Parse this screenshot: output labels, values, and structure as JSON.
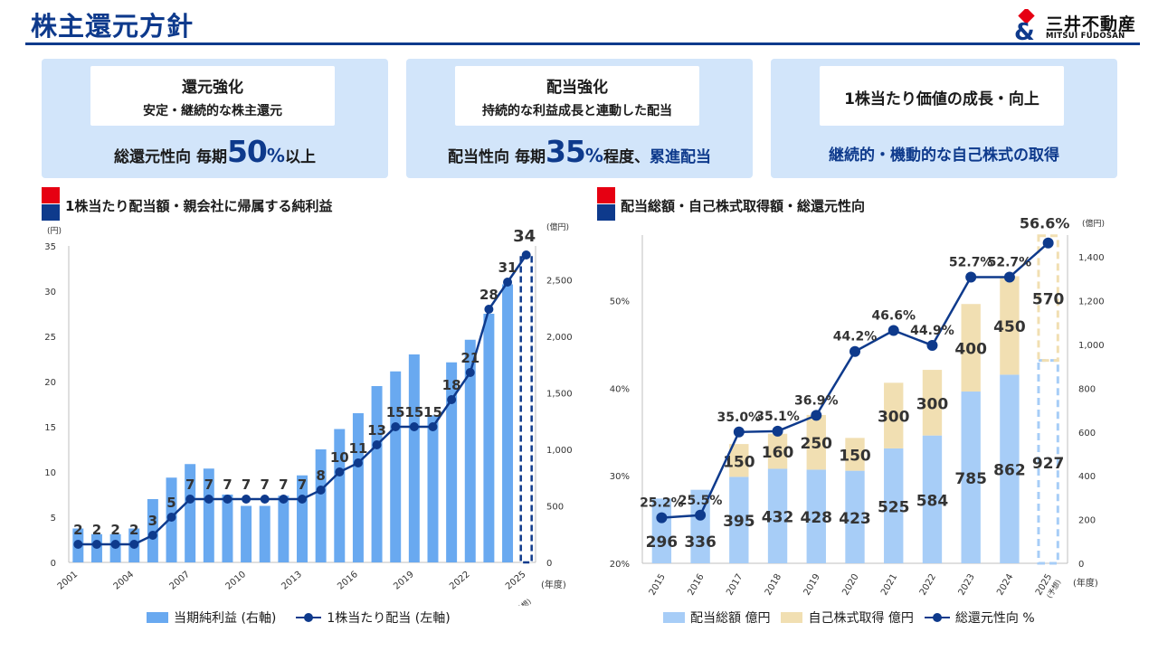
{
  "page": {
    "title": "株主還元方針"
  },
  "logo": {
    "jp": "三井不動産",
    "en": "MITSUI FUDOSAN"
  },
  "colors": {
    "navy": "#0e3a8c",
    "bar_blue": "#69a9f0",
    "light_blue": "#a7cdf7",
    "tan": "#f1dfb2",
    "card_bg": "#d2e5fa",
    "red": "#e60012"
  },
  "cards": [
    {
      "heading": "還元強化",
      "sub": "安定・継続的な株主還元",
      "b_pre": "総還元性向 毎期",
      "b_num": "50",
      "b_pct": "%",
      "b_post": "以上"
    },
    {
      "heading": "配当強化",
      "sub": "持続的な利益成長と連動した配当",
      "b_pre": "配当性向 毎期",
      "b_num": "35",
      "b_pct": "%",
      "b_post": "程度、",
      "b_em": "累進配当"
    },
    {
      "heading": "1株当たり価値の成長・向上",
      "bottom": "継続的・機動的な自己株式の取得"
    }
  ],
  "chart_data": [
    {
      "type": "bar",
      "title": "1株当たり配当額・親会社に帰属する純利益",
      "left_unit": "(円)",
      "right_unit": "(億円)",
      "x_unit": "(年度)",
      "categories": [
        "2001",
        "2002",
        "2003",
        "2004",
        "2005",
        "2006",
        "2007",
        "2008",
        "2009",
        "2010",
        "2011",
        "2012",
        "2013",
        "2014",
        "2015",
        "2016",
        "2017",
        "2018",
        "2019",
        "2020",
        "2021",
        "2022",
        "2023",
        "2024",
        "2025"
      ],
      "x_ticks": [
        "2001",
        "2004",
        "2007",
        "2010",
        "2013",
        "2016",
        "2019",
        "2022",
        "2025"
      ],
      "forecast_note": "(予想)",
      "y_left": {
        "min": 0,
        "max": 35,
        "ticks": [
          "0",
          "5",
          "10",
          "15",
          "20",
          "25",
          "30",
          "35"
        ]
      },
      "y_right": {
        "min": 0,
        "max": 2800,
        "ticks": [
          "0",
          "500",
          "1,000",
          "1,500",
          "2,000",
          "2,500"
        ]
      },
      "series": [
        {
          "name": "当期純利益 (右軸)",
          "axis": "right",
          "kind": "bar",
          "values": [
            300,
            250,
            250,
            300,
            560,
            750,
            870,
            830,
            600,
            500,
            500,
            590,
            770,
            1000,
            1180,
            1320,
            1560,
            1690,
            1840,
            1300,
            1770,
            1970,
            2200,
            2460,
            2700
          ],
          "forecast_last": true
        },
        {
          "name": "1株当たり配当 (左軸)",
          "axis": "left",
          "kind": "line",
          "values": [
            2,
            2,
            2,
            2,
            3,
            5,
            7,
            7,
            7,
            7,
            7,
            7,
            7,
            8,
            10,
            11,
            13,
            15,
            15,
            15,
            18,
            21,
            28,
            31,
            34
          ],
          "labels": [
            "2",
            "2",
            "2",
            "2",
            "3",
            "5",
            "7",
            "7",
            "7",
            "7",
            "7",
            "7",
            "7",
            "8",
            "10",
            "11",
            "13",
            "15",
            "15",
            "15",
            "18",
            "21",
            "28",
            "31",
            "34"
          ]
        }
      ]
    },
    {
      "type": "bar",
      "title": "配当総額・自己株式取得額・総還元性向",
      "right_unit": "(億円)",
      "x_unit": "(年度)",
      "categories": [
        "2015",
        "2016",
        "2017",
        "2018",
        "2019",
        "2020",
        "2021",
        "2022",
        "2023",
        "2024",
        "2025"
      ],
      "forecast_note": "(予想)",
      "y_left": {
        "min": 20,
        "max": 57.5,
        "ticks": [
          "20%",
          "30%",
          "40%",
          "50%"
        ]
      },
      "y_right": {
        "min": 0,
        "max": 1500,
        "ticks": [
          "0",
          "200",
          "400",
          "600",
          "800",
          "1,000",
          "1,200",
          "1,400"
        ]
      },
      "series": [
        {
          "name": "配当総額 億円",
          "axis": "right",
          "kind": "stack",
          "values": [
            296,
            336,
            395,
            432,
            428,
            423,
            525,
            584,
            785,
            862,
            927
          ],
          "labels": [
            "296",
            "336",
            "395",
            "432",
            "428",
            "423",
            "525",
            "584",
            "785",
            "862",
            "927"
          ]
        },
        {
          "name": "自己株式取得 億円",
          "axis": "right",
          "kind": "stack",
          "values": [
            0,
            0,
            150,
            160,
            250,
            150,
            300,
            300,
            400,
            450,
            570
          ],
          "labels": [
            "",
            "",
            "150",
            "160",
            "250",
            "150",
            "300",
            "300",
            "400",
            "450",
            "570"
          ]
        },
        {
          "name": "総還元性向 %",
          "axis": "left",
          "kind": "line",
          "values": [
            25.2,
            25.5,
            35.0,
            35.1,
            36.9,
            44.2,
            46.6,
            44.9,
            52.7,
            52.7,
            56.6
          ],
          "labels": [
            "25.2%",
            "25.5%",
            "35.0%",
            "35.1%",
            "36.9%",
            "44.2%",
            "46.6%",
            "44.9%",
            "52.7%",
            "52.7%",
            "56.6%"
          ]
        }
      ]
    }
  ]
}
